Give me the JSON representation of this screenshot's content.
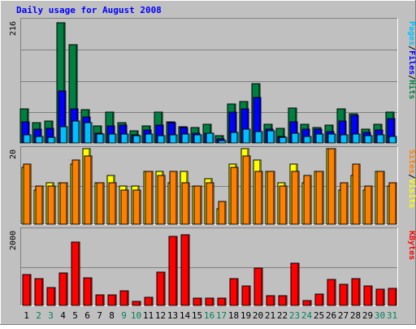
{
  "chart_data": [
    {
      "type": "bar",
      "title": "Daily usage for August 2008",
      "panel": "pages-files-hits",
      "ymax_label": "216",
      "right_label": [
        "Pages",
        "Files",
        "Hits"
      ],
      "ylim": [
        0,
        216
      ],
      "categories": [
        "1",
        "2",
        "3",
        "4",
        "5",
        "6",
        "7",
        "8",
        "9",
        "10",
        "11",
        "12",
        "13",
        "14",
        "15",
        "16",
        "17",
        "18",
        "19",
        "20",
        "21",
        "22",
        "23",
        "24",
        "25",
        "26",
        "27",
        "28",
        "29",
        "30",
        "31"
      ],
      "weekend_days": [
        "2",
        "3",
        "9",
        "10",
        "16",
        "17",
        "23",
        "24",
        "30",
        "31"
      ],
      "series": [
        {
          "name": "Hits",
          "color": "#008040",
          "values": [
            62,
            37,
            39,
            216,
            177,
            60,
            30,
            56,
            37,
            22,
            30,
            56,
            38,
            29,
            27,
            34,
            13,
            70,
            74,
            106,
            34,
            26,
            63,
            33,
            28,
            32,
            62,
            52,
            25,
            34,
            56
          ]
        },
        {
          "name": "Files",
          "color": "#0000FF",
          "values": [
            38,
            25,
            26,
            93,
            62,
            47,
            18,
            31,
            32,
            14,
            23,
            32,
            37,
            28,
            18,
            18,
            8,
            56,
            62,
            81,
            25,
            12,
            38,
            25,
            25,
            20,
            40,
            50,
            19,
            24,
            44
          ]
        },
        {
          "name": "Pages",
          "color": "#00C0FF",
          "values": [
            14,
            11,
            10,
            29,
            40,
            37,
            16,
            16,
            16,
            13,
            16,
            13,
            14,
            16,
            14,
            17,
            5,
            19,
            25,
            20,
            22,
            10,
            17,
            11,
            16,
            16,
            15,
            16,
            13,
            15,
            12
          ]
        }
      ]
    },
    {
      "type": "bar",
      "panel": "sites-visits",
      "ymax_label": "20",
      "right_label": [
        "Sites",
        "Visits"
      ],
      "ylim": [
        0,
        20
      ],
      "categories": [
        "1",
        "2",
        "3",
        "4",
        "5",
        "6",
        "7",
        "8",
        "9",
        "10",
        "11",
        "12",
        "13",
        "14",
        "15",
        "16",
        "17",
        "18",
        "19",
        "20",
        "21",
        "22",
        "23",
        "24",
        "25",
        "26",
        "27",
        "28",
        "29",
        "30",
        "31"
      ],
      "series": [
        {
          "name": "Visits",
          "color": "#FFFF00",
          "values": [
            15,
            9,
            11,
            11,
            16,
            20,
            11,
            13,
            10,
            10,
            14,
            14,
            11,
            14,
            10,
            12,
            4,
            16,
            20,
            17,
            14,
            11,
            16,
            11,
            14,
            20,
            9,
            13,
            9,
            14,
            10
          ]
        },
        {
          "name": "Sites",
          "color": "#FF8000",
          "values": [
            16,
            10,
            10,
            11,
            17,
            18,
            11,
            11,
            9,
            9,
            14,
            13,
            14,
            11,
            10,
            11,
            6,
            15,
            18,
            14,
            14,
            10,
            14,
            13,
            14,
            20,
            11,
            16,
            10,
            14,
            11
          ]
        }
      ]
    },
    {
      "type": "bar",
      "panel": "kbytes",
      "ymax_label": "2000",
      "right_label": [
        "KBytes"
      ],
      "ylim": [
        0,
        2000
      ],
      "categories": [
        "1",
        "2",
        "3",
        "4",
        "5",
        "6",
        "7",
        "8",
        "9",
        "10",
        "11",
        "12",
        "13",
        "14",
        "15",
        "16",
        "17",
        "18",
        "19",
        "20",
        "21",
        "22",
        "23",
        "24",
        "25",
        "26",
        "27",
        "28",
        "29",
        "30",
        "31"
      ],
      "series": [
        {
          "name": "KBytes",
          "color": "#FF0000",
          "values": [
            810,
            720,
            470,
            860,
            1680,
            740,
            270,
            270,
            380,
            110,
            210,
            880,
            1820,
            1880,
            190,
            190,
            190,
            700,
            520,
            980,
            250,
            260,
            1120,
            130,
            300,
            690,
            560,
            700,
            510,
            420,
            460
          ]
        }
      ]
    }
  ]
}
